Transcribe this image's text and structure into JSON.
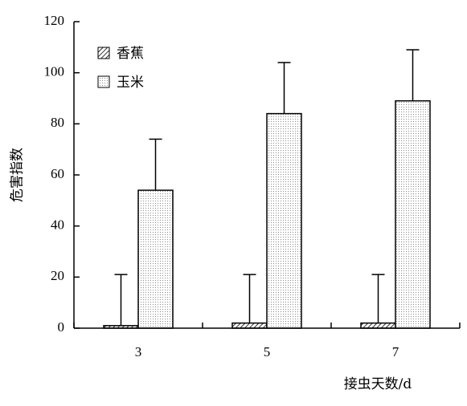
{
  "chart_data": {
    "type": "bar",
    "title": "",
    "xlabel": "接虫天数/d",
    "ylabel": "危害指数",
    "categories": [
      "3",
      "5",
      "7"
    ],
    "ylim": [
      0,
      120
    ],
    "yticks": [
      0,
      20,
      40,
      60,
      80,
      100,
      120
    ],
    "grid": false,
    "legend_position": "top-left",
    "series": [
      {
        "name": "香蕉",
        "pattern": "diagonal-hatch",
        "values": [
          1,
          2,
          2
        ],
        "error_upper": [
          21,
          21,
          21
        ]
      },
      {
        "name": "玉米",
        "pattern": "fine-dots",
        "values": [
          54,
          84,
          89
        ],
        "error_upper": [
          74,
          104,
          109
        ]
      }
    ]
  }
}
